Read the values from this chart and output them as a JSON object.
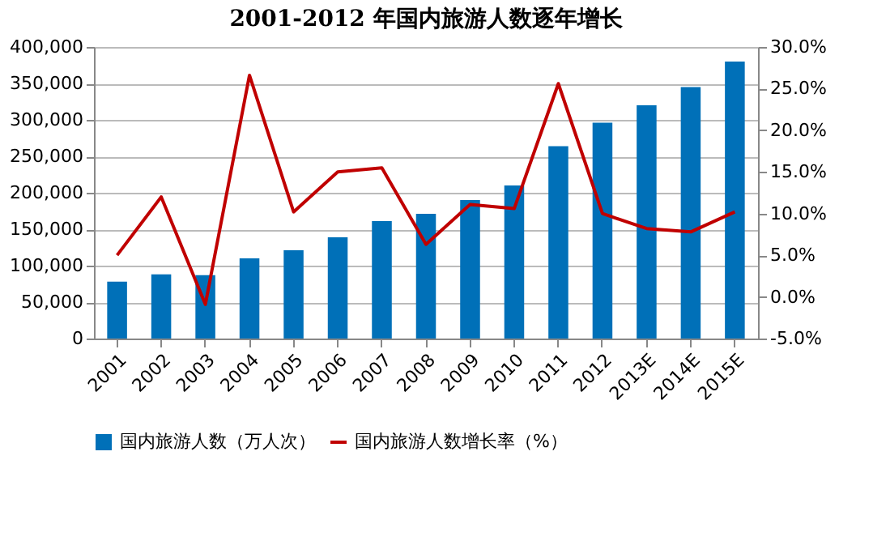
{
  "chart_data": {
    "type": "bar",
    "title": "2001-2012 年国内旅游人数逐年增长",
    "categories": [
      "2001",
      "2002",
      "2003",
      "2004",
      "2005",
      "2006",
      "2007",
      "2008",
      "2009",
      "2010",
      "2011",
      "2012",
      "2013E",
      "2014E",
      "2015E"
    ],
    "series": [
      {
        "name": "国内旅游人数（万人次）",
        "color": "#0070b8",
        "values": [
          78000,
          88000,
          87000,
          110000,
          121000,
          139000,
          161000,
          171000,
          190000,
          210000,
          264000,
          296000,
          320000,
          345000,
          380000
        ]
      },
      {
        "name": "国内旅游人数增长率（%）",
        "type": "line",
        "axis": "y2",
        "color": "#c00000",
        "values": [
          5.0,
          12.0,
          -0.9,
          26.6,
          10.2,
          15.0,
          15.5,
          6.3,
          11.1,
          10.6,
          25.6,
          10.0,
          8.2,
          7.8,
          10.2
        ]
      }
    ],
    "ylim": [
      0,
      400000
    ],
    "yticks": [
      {
        "value": 0,
        "label": "0"
      },
      {
        "value": 50000,
        "label": "50,000"
      },
      {
        "value": 100000,
        "label": "100,000"
      },
      {
        "value": 150000,
        "label": "150,000"
      },
      {
        "value": 200000,
        "label": "200,000"
      },
      {
        "value": 250000,
        "label": "250,000"
      },
      {
        "value": 300000,
        "label": "300,000"
      },
      {
        "value": 350000,
        "label": "350,000"
      },
      {
        "value": 400000,
        "label": "400,000"
      }
    ],
    "y2lim": [
      -5,
      30
    ],
    "y2ticks": [
      {
        "value": -5,
        "label": "-5.0%"
      },
      {
        "value": 0,
        "label": "0.0%"
      },
      {
        "value": 5,
        "label": "5.0%"
      },
      {
        "value": 10,
        "label": "10.0%"
      },
      {
        "value": 15,
        "label": "15.0%"
      },
      {
        "value": 20,
        "label": "20.0%"
      },
      {
        "value": 25,
        "label": "25.0%"
      },
      {
        "value": 30,
        "label": "30.0%"
      }
    ],
    "grid": "y",
    "legend": "bottom",
    "marker": "none",
    "line_style": "solid"
  }
}
